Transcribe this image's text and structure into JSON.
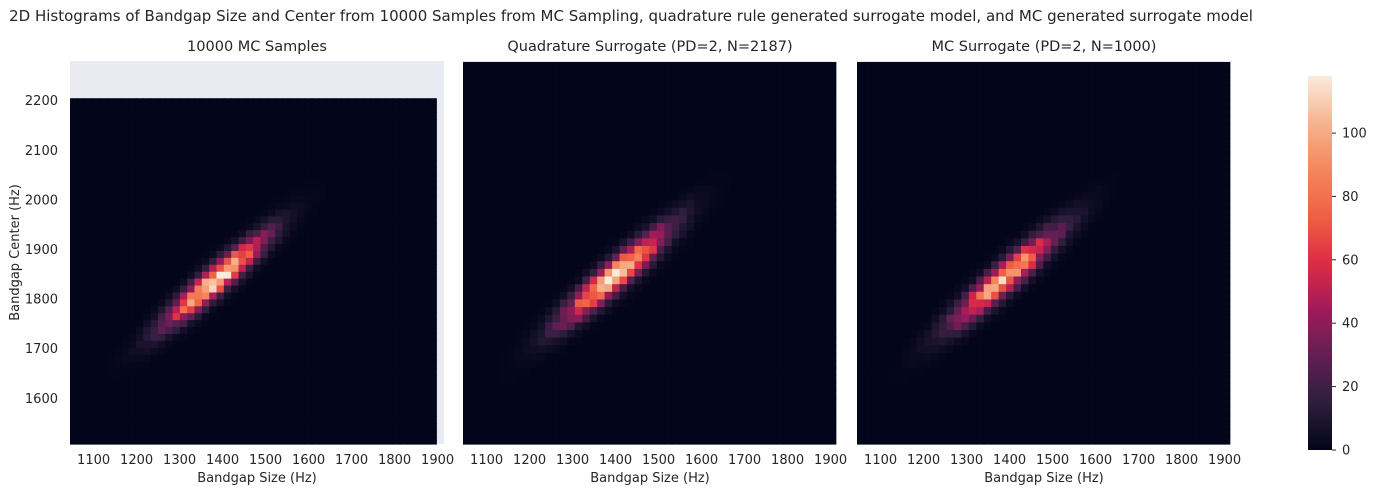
{
  "figure": {
    "suptitle": "2D Histograms of Bandgap Size and Center from 10000 Samples from MC Sampling, quadrature rule generated surrogate model, and MC generated surrogate model"
  },
  "colors": {
    "axes_face": "#eaeaf2",
    "colormap": [
      "#03051a",
      "#2c1e3d",
      "#611f53",
      "#a11a5b",
      "#dd2c45",
      "#f06043",
      "#f4875e",
      "#f6b48f",
      "#faebdd"
    ]
  },
  "chart_data": [
    {
      "type": "heatmap",
      "title": "10000 MC Samples",
      "xlabel": "Bandgap Size (Hz)",
      "ylabel": "Bandgap Center (Hz)",
      "xlim": [
        1045,
        1915
      ],
      "ylim": [
        1508,
        2280
      ],
      "x_ticks": [
        "1100",
        "1200",
        "1300",
        "1400",
        "1500",
        "1600",
        "1700",
        "1800",
        "1900"
      ],
      "y_ticks": [
        "1600",
        "1700",
        "1800",
        "1900",
        "2000",
        "2100",
        "2200"
      ],
      "bins": 50,
      "extent": {
        "x": [
          1045,
          1897
        ],
        "y": [
          1508,
          2205
        ]
      },
      "distribution": {
        "mean_size": 1385,
        "mean_center": 1840,
        "sd_size": 75,
        "sd_center": 58,
        "correlation": 0.93,
        "peak_count": 118
      }
    },
    {
      "type": "heatmap",
      "title": "Quadrature Surrogate (PD=2, N=2187)",
      "xlabel": "Bandgap Size (Hz)",
      "ylabel": "",
      "xlim": [
        1045,
        1915
      ],
      "ylim": [
        1508,
        2280
      ],
      "x_ticks": [
        "1100",
        "1200",
        "1300",
        "1400",
        "1500",
        "1600",
        "1700",
        "1800",
        "1900"
      ],
      "y_ticks": [],
      "bins": 50,
      "extent": {
        "x": [
          1045,
          1912
        ],
        "y": [
          1508,
          2278
        ]
      },
      "distribution": {
        "mean_size": 1400,
        "mean_center": 1850,
        "sd_size": 80,
        "sd_center": 62,
        "correlation": 0.93,
        "peak_count": 112
      }
    },
    {
      "type": "heatmap",
      "title": "MC Surrogate (PD=2, N=1000)",
      "xlabel": "Bandgap Size (Hz)",
      "ylabel": "",
      "xlim": [
        1045,
        1915
      ],
      "ylim": [
        1508,
        2280
      ],
      "x_ticks": [
        "1100",
        "1200",
        "1300",
        "1400",
        "1500",
        "1600",
        "1700",
        "1800",
        "1900"
      ],
      "y_ticks": [],
      "bins": 50,
      "extent": {
        "x": [
          1045,
          1912
        ],
        "y": [
          1508,
          2278
        ]
      },
      "distribution": {
        "mean_size": 1390,
        "mean_center": 1845,
        "sd_size": 80,
        "sd_center": 62,
        "correlation": 0.93,
        "peak_count": 100
      }
    }
  ],
  "colorbar": {
    "vmin": 0,
    "vmax": 118,
    "ticks": [
      "0",
      "20",
      "40",
      "60",
      "80",
      "100"
    ]
  }
}
